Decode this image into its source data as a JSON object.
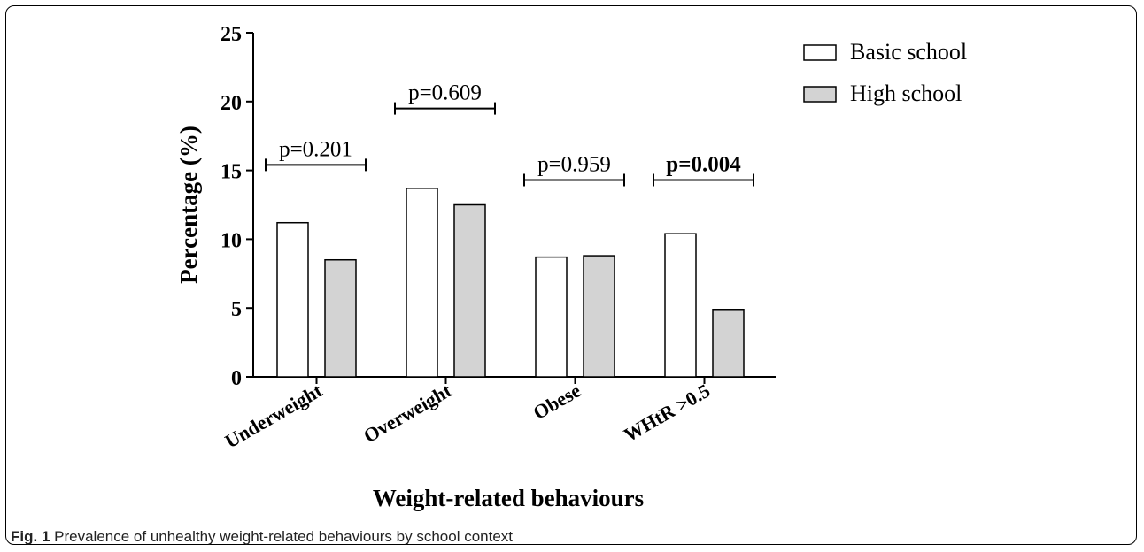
{
  "caption": {
    "label": "Fig. 1",
    "text": "Prevalence of unhealthy weight-related behaviours by school context"
  },
  "chart_data": {
    "type": "bar",
    "title": "",
    "xlabel": "Weight-related behaviours",
    "ylabel": "Percentage (%)",
    "ylim": [
      0,
      25
    ],
    "yticks": [
      0,
      5,
      10,
      15,
      20,
      25
    ],
    "categories": [
      "Underweight",
      "Overweight",
      "Obese",
      "WHtR >0.5"
    ],
    "series": [
      {
        "name": "Basic school",
        "values": [
          11.2,
          13.7,
          8.7,
          10.4
        ],
        "color": "#ffffff"
      },
      {
        "name": "High school",
        "values": [
          8.5,
          12.5,
          8.8,
          4.9
        ],
        "color": "#d3d3d3"
      }
    ],
    "annotations": [
      {
        "text": "p=0.201",
        "category": "Underweight",
        "y": 15.4,
        "bold": false
      },
      {
        "text": "p=0.609",
        "category": "Overweight",
        "y": 19.5,
        "bold": false
      },
      {
        "text": "p=0.959",
        "category": "Obese",
        "y": 14.3,
        "bold": false
      },
      {
        "text": "p=0.004",
        "category": "WHtR >0.5",
        "y": 14.3,
        "bold": true
      }
    ],
    "legend_position": "top-right",
    "grid": false
  }
}
